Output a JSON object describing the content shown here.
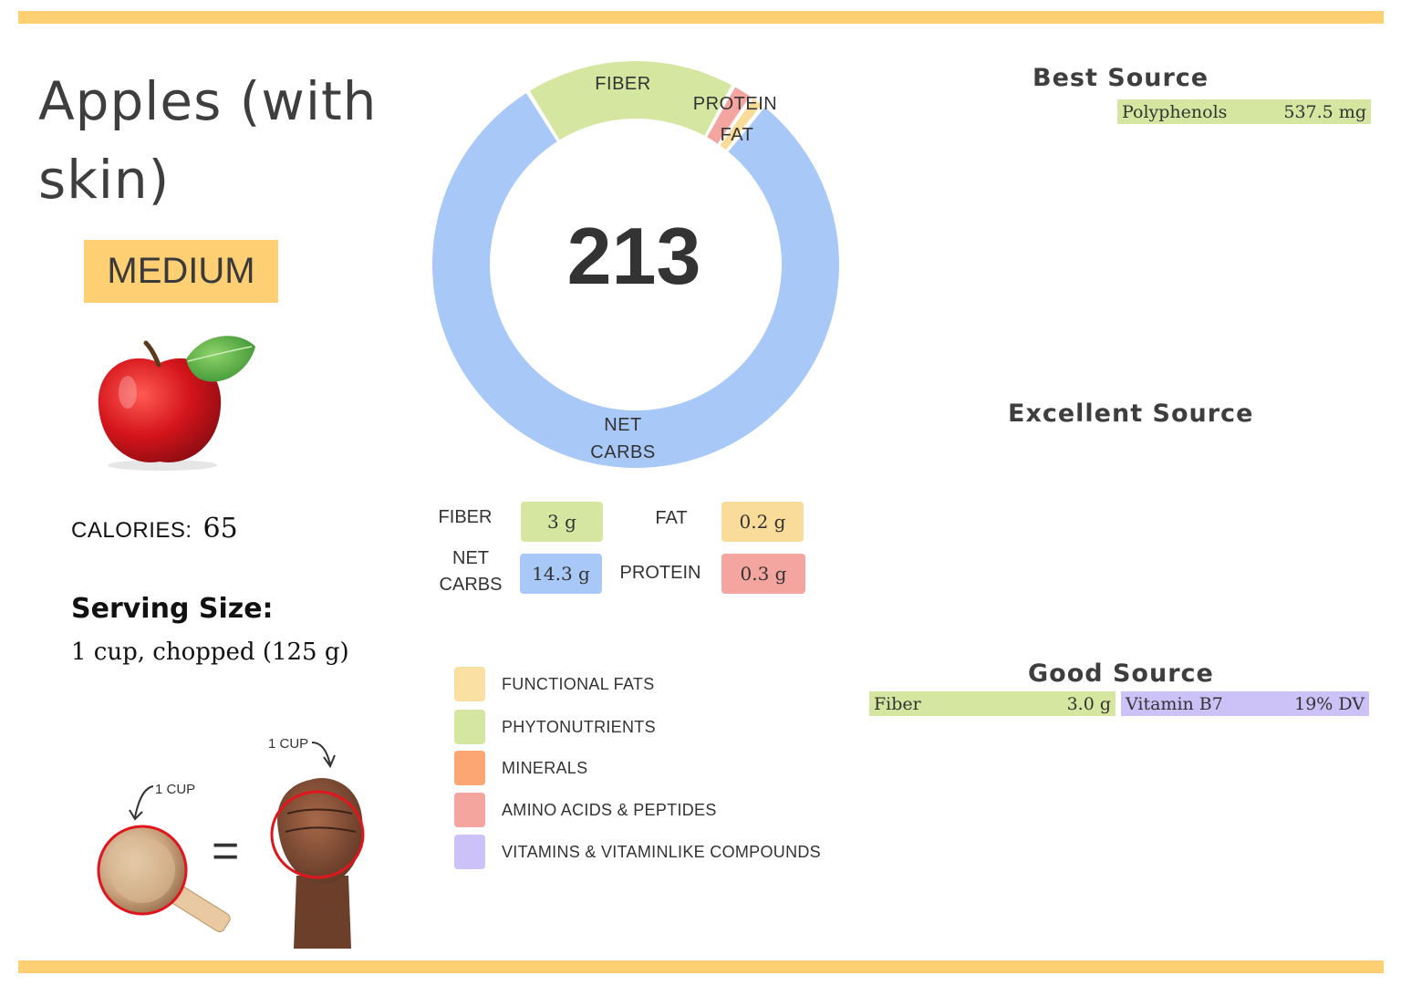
{
  "food": {
    "title": "Apples (with skin)",
    "size_badge": "MEDIUM",
    "calories_label": "CALORIES:",
    "calories_value": "65",
    "serving_title": "Serving Size:",
    "serving_value": "1 cup, chopped (125 g)"
  },
  "cup_illustration": {
    "cup_label": "1 CUP",
    "fist_label": "1 CUP",
    "equals": "="
  },
  "chart_data": {
    "type": "pie",
    "title": "213",
    "center_value": "213",
    "slices": [
      {
        "label": "FIBER",
        "value": 3,
        "color": "#d5e6a0"
      },
      {
        "label": "PROTEIN",
        "value": 0.3,
        "color": "#f5a5a0"
      },
      {
        "label": "FAT",
        "value": 0.2,
        "color": "#f9db9a"
      },
      {
        "label": "NET CARBS",
        "value": 14.3,
        "color": "#a8c8f8"
      }
    ],
    "label_lines": {
      "fiber": [
        "FIBER"
      ],
      "protein": [
        "PROTEIN"
      ],
      "fat": [
        "FAT"
      ],
      "net_carbs": [
        "NET",
        "CARBS"
      ]
    }
  },
  "macros": {
    "fiber": {
      "label": "FIBER",
      "value": "3 g",
      "color": "#d5e6a0"
    },
    "fat": {
      "label": "FAT",
      "value": "0.2 g",
      "color": "#f9db9a"
    },
    "net_carbs": {
      "label_lines": [
        "NET",
        "CARBS"
      ],
      "value": "14.3 g",
      "color": "#a8c8f8"
    },
    "protein": {
      "label": "PROTEIN",
      "value": "0.3 g",
      "color": "#f5a5a0"
    }
  },
  "legend": [
    {
      "label": "FUNCTIONAL  FATS",
      "color": "#fbe0a3"
    },
    {
      "label": "PHYTONUTRIENTS",
      "color": "#d5e6a0"
    },
    {
      "label": "MINERALS",
      "color": "#fca674"
    },
    {
      "label": "AMINO ACIDS & PEPTIDES",
      "color": "#f5a5a0"
    },
    {
      "label": "VITAMINS & VITAMINLIKE COMPOUNDS",
      "color": "#cdc2f7"
    }
  ],
  "best_source": {
    "title": "Best Source",
    "items": [
      {
        "name": "Polyphenols",
        "value": "537.5 mg",
        "color": "#d5e6a0"
      }
    ]
  },
  "excellent_source": {
    "title": "Excellent Source"
  },
  "good_source": {
    "title": "Good Source",
    "items": [
      {
        "name": "Fiber",
        "value": "3.0 g",
        "color": "#d5e6a0"
      },
      {
        "name": "Vitamin B7",
        "value": "19% DV",
        "color": "#cdc2f7"
      }
    ]
  }
}
